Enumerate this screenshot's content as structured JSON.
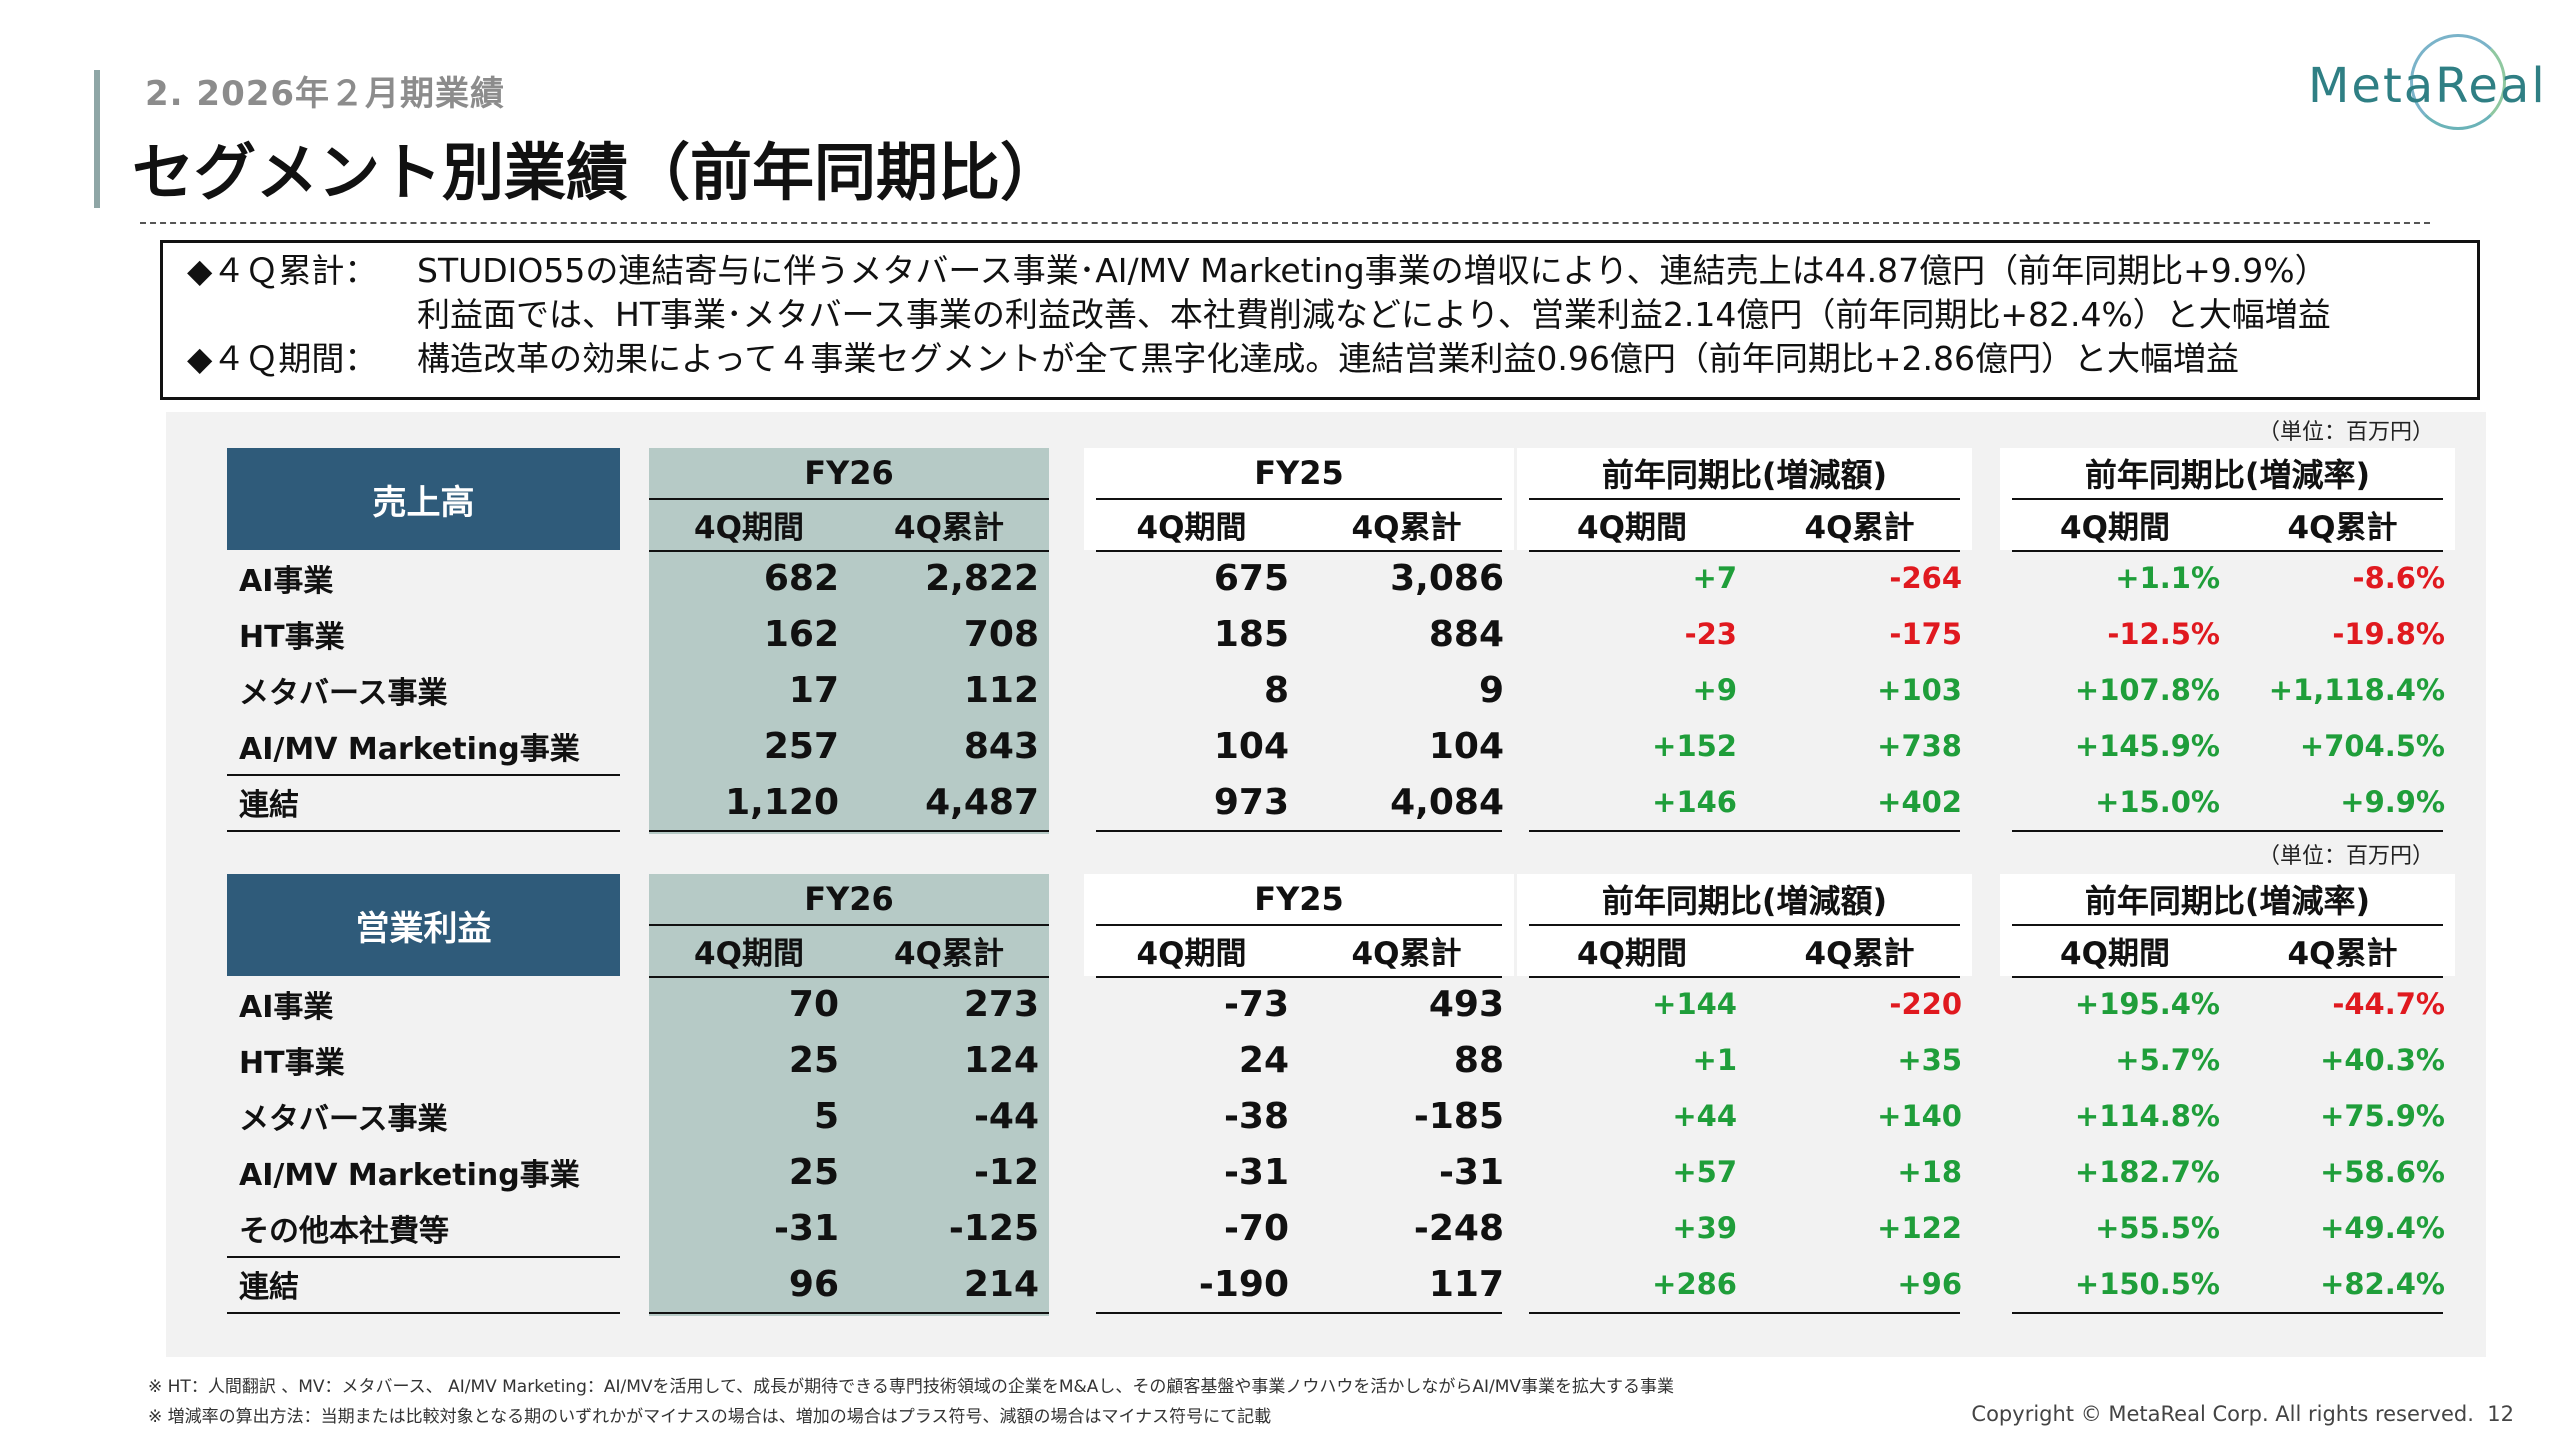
{
  "header": {
    "section": "2. 2026年２月期業績",
    "title": "セグメント別業績（前年同期比）",
    "logo": "MetaReal"
  },
  "summary": {
    "line1_head": "◆４Ｑ累計：",
    "line1": "STUDIO55の連結寄与に伴うメタバース事業･AI/MV Marketing事業の増収により、連結売上は44.87億円（前年同期比+9.9%）",
    "line2": "利益面では、HT事業･メタバース事業の利益改善、本社費削減などにより、営業利益2.14億円（前年同期比+82.4%）と大幅増益",
    "line3_head": "◆４Ｑ期間：",
    "line3": "構造改革の効果によって４事業セグメントが全て黒字化達成。連結営業利益0.96億円（前年同期比+2.86億円）と大幅増益"
  },
  "unit_label": "（単位：百万円）",
  "col_groups": [
    "FY26",
    "FY25",
    "前年同期比(増減額)",
    "前年同期比(増減率)"
  ],
  "sub_cols": [
    "4Q期間",
    "4Q累計"
  ],
  "sales": {
    "header": "売上高",
    "rows": [
      {
        "label": "AI事業",
        "v": [
          "682",
          "2,822",
          "675",
          "3,086",
          "+7",
          "-264",
          "+1.1%",
          "-8.6%"
        ]
      },
      {
        "label": "HT事業",
        "v": [
          "162",
          "708",
          "185",
          "884",
          "-23",
          "-175",
          "-12.5%",
          "-19.8%"
        ]
      },
      {
        "label": "メタバース事業",
        "v": [
          "17",
          "112",
          "8",
          "9",
          "+9",
          "+103",
          "+107.8%",
          "+1,118.4%"
        ]
      },
      {
        "label": "AI/MV Marketing事業",
        "v": [
          "257",
          "843",
          "104",
          "104",
          "+152",
          "+738",
          "+145.9%",
          "+704.5%"
        ]
      },
      {
        "label": "連結",
        "v": [
          "1,120",
          "4,487",
          "973",
          "4,084",
          "+146",
          "+402",
          "+15.0%",
          "+9.9%"
        ]
      }
    ]
  },
  "op": {
    "header": "営業利益",
    "rows": [
      {
        "label": "AI事業",
        "v": [
          "70",
          "273",
          "-73",
          "493",
          "+144",
          "-220",
          "+195.4%",
          "-44.7%"
        ]
      },
      {
        "label": "HT事業",
        "v": [
          "25",
          "124",
          "24",
          "88",
          "+1",
          "+35",
          "+5.7%",
          "+40.3%"
        ]
      },
      {
        "label": "メタバース事業",
        "v": [
          "5",
          "-44",
          "-38",
          "-185",
          "+44",
          "+140",
          "+114.8%",
          "+75.9%"
        ]
      },
      {
        "label": "AI/MV Marketing事業",
        "v": [
          "25",
          "-12",
          "-31",
          "-31",
          "+57",
          "+18",
          "+182.7%",
          "+58.6%"
        ]
      },
      {
        "label": "その他本社費等",
        "v": [
          "-31",
          "-125",
          "-70",
          "-248",
          "+39",
          "+122",
          "+55.5%",
          "+49.4%"
        ]
      },
      {
        "label": "連結",
        "v": [
          "96",
          "214",
          "-190",
          "117",
          "+286",
          "+96",
          "+150.5%",
          "+82.4%"
        ]
      }
    ]
  },
  "colors": {
    "positive": "#1f9e3a",
    "negative": "#e0191f",
    "header_bg": "#2f5b7a",
    "fy26_band": "#b6cac6"
  },
  "footnotes": [
    "※ HT：人間翻訳 、MV：メタバース、 AI/MV Marketing：AI/MVを活用して、成長が期待できる専門技術領域の企業をM&Aし、その顧客基盤や事業ノウハウを活かしながらAI/MV事業を拡大する事業",
    "※ 増減率の算出方法：当期または比較対象となる期のいずれかがマイナスの場合は、増加の場合はプラス符号、減額の場合はマイナス符号にて記載"
  ],
  "copyright": "Copyright © MetaReal Corp. All rights reserved.",
  "page_number": "12"
}
